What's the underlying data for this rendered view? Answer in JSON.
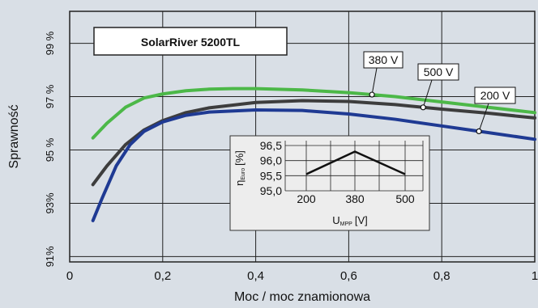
{
  "chart_data": {
    "type": "line",
    "title": "SolarRiver 5200TL",
    "xlabel": "Moc / moc znamionowa",
    "ylabel": "Sprawność",
    "xlim": [
      0,
      1
    ],
    "ylim": [
      90.8,
      100.2
    ],
    "x_ticks": [
      {
        "v": 0,
        "label": "0"
      },
      {
        "v": 0.2,
        "label": "0,2"
      },
      {
        "v": 0.4,
        "label": "0,4"
      },
      {
        "v": 0.6,
        "label": "0,6"
      },
      {
        "v": 0.8,
        "label": "0,8"
      },
      {
        "v": 1,
        "label": "1"
      }
    ],
    "y_ticks": [
      {
        "v": 91,
        "label": "91%"
      },
      {
        "v": 93,
        "label": "93%"
      },
      {
        "v": 95,
        "label": "95 %"
      },
      {
        "v": 97,
        "label": "97 %"
      },
      {
        "v": 99,
        "label": "99 %"
      }
    ],
    "grid": true,
    "series": [
      {
        "name": "380 V",
        "color": "#4cb848",
        "x": [
          0.05,
          0.08,
          0.12,
          0.16,
          0.2,
          0.25,
          0.3,
          0.35,
          0.4,
          0.5,
          0.6,
          0.7,
          0.8,
          0.9,
          1.0
        ],
        "y": [
          95.45,
          96.0,
          96.6,
          96.95,
          97.1,
          97.22,
          97.28,
          97.3,
          97.3,
          97.25,
          97.15,
          97.0,
          96.8,
          96.6,
          96.4
        ],
        "marker_x": 0.65
      },
      {
        "name": "500 V",
        "color": "#3d3d3d",
        "x": [
          0.05,
          0.08,
          0.12,
          0.16,
          0.2,
          0.25,
          0.3,
          0.4,
          0.5,
          0.6,
          0.7,
          0.8,
          0.9,
          1.0
        ],
        "y": [
          93.7,
          94.4,
          95.2,
          95.75,
          96.1,
          96.4,
          96.58,
          96.78,
          96.85,
          96.82,
          96.7,
          96.53,
          96.38,
          96.2
        ],
        "marker_x": 0.76
      },
      {
        "name": "200 V",
        "color": "#1f3a93",
        "x": [
          0.05,
          0.07,
          0.1,
          0.13,
          0.16,
          0.2,
          0.25,
          0.3,
          0.4,
          0.5,
          0.6,
          0.7,
          0.8,
          0.88,
          1.0
        ],
        "y": [
          92.35,
          93.2,
          94.4,
          95.2,
          95.7,
          96.05,
          96.3,
          96.42,
          96.5,
          96.48,
          96.35,
          96.15,
          95.9,
          95.7,
          95.4
        ],
        "marker_x": 0.88
      }
    ],
    "inset": {
      "ylabel_main": "η",
      "ylabel_sub": "Euro",
      "ylabel_unit": "[%]",
      "xlabel_main": "U",
      "xlabel_sub": "MPP",
      "xlabel_unit": "[V]",
      "y_ticks": [
        "96,5",
        "96,0",
        "95,5",
        "95,0"
      ],
      "x_ticks": [
        "200",
        "380",
        "500"
      ],
      "x": [
        200,
        380,
        500
      ],
      "y": [
        95.55,
        96.3,
        95.55
      ]
    }
  }
}
